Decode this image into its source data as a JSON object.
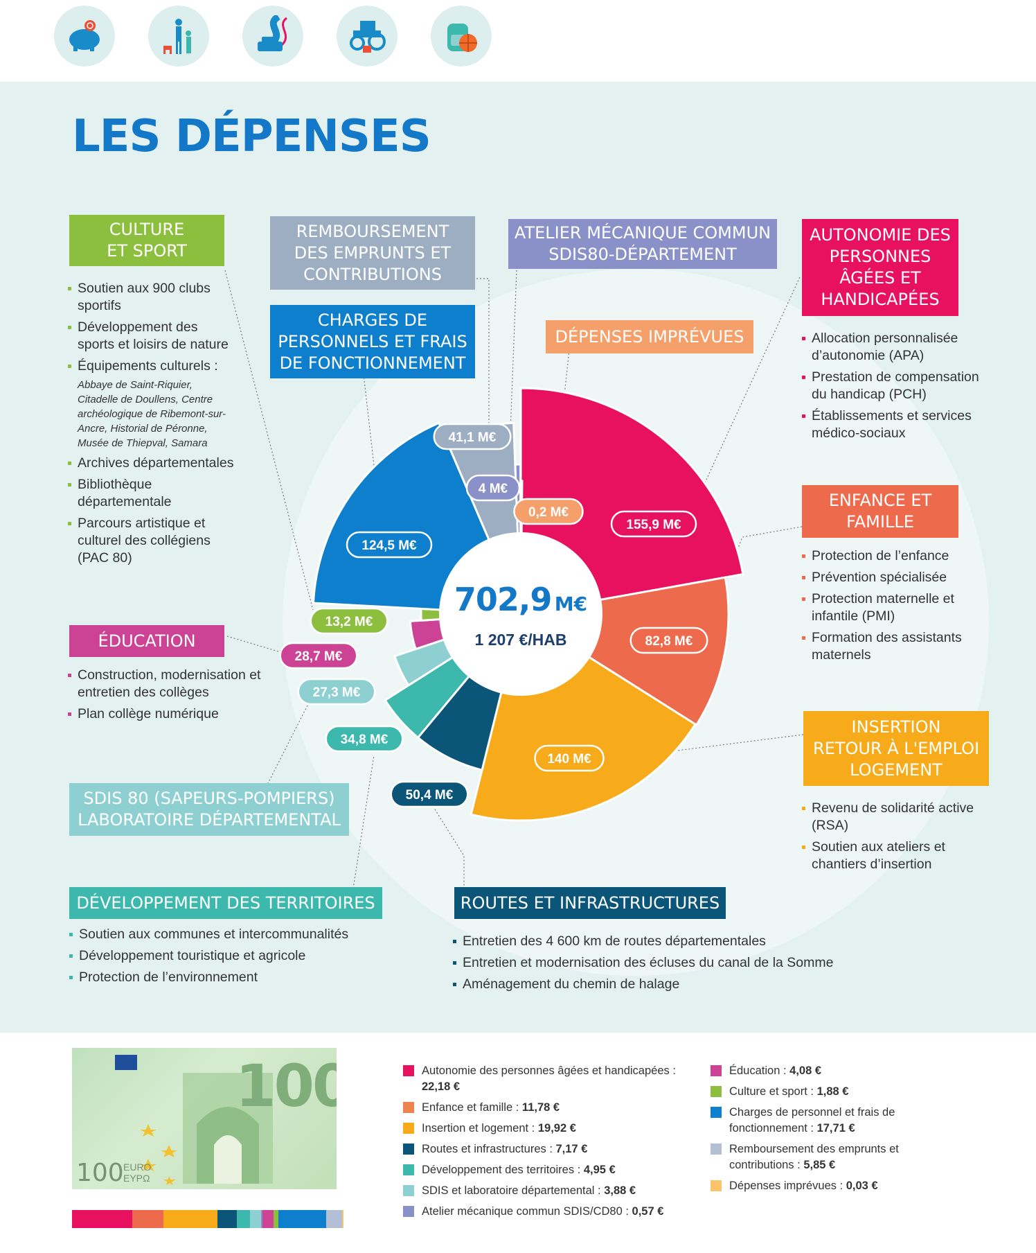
{
  "top_icons": [
    "piggy-bank-icon",
    "family-icon",
    "road-car-icon",
    "tractor-icon",
    "backpack-ball-icon"
  ],
  "title": "LES DÉPENSES",
  "center": {
    "total": "702,9",
    "unit": "M€",
    "per_hab": "1 207 €/HAB"
  },
  "categories": {
    "culture": {
      "title": [
        "CULTURE",
        "ET SPORT"
      ],
      "color": "#8dbf3e",
      "items": [
        "Soutien aux 900 clubs sportifs",
        "Développement des sports et loisirs de nature",
        "Équipements culturels :"
      ],
      "sub": "Abbaye de Saint-Riquier, Citadelle de Doullens, Centre archéologique de Ribemont-sur-Ancre, Historial de Péronne, Musée de Thiepval, Samara",
      "items2": [
        "Archives départementales",
        "Bibliothèque départementale",
        "Parcours artistique et culturel des collégiens (PAC 80)"
      ]
    },
    "remboursement": {
      "title": [
        "REMBOURSEMENT",
        "DES EMPRUNTS ET",
        "CONTRIBUTIONS"
      ],
      "color": "#9eaec2"
    },
    "atelier": {
      "title": [
        "ATELIER MÉCANIQUE COMMUN",
        "SDIS80-DÉPARTEMENT"
      ],
      "color": "#8a90c8"
    },
    "autonomie": {
      "title": [
        "AUTONOMIE DES",
        "PERSONNES",
        "ÂGÉES ET",
        "HANDICAPÉES"
      ],
      "color": "#e8115f",
      "items": [
        "Allocation personnalisée d’autonomie (APA)",
        "Prestation de compensation du handicap (PCH)",
        "Établissements et services médico-sociaux"
      ]
    },
    "charges": {
      "title": [
        "CHARGES DE",
        "PERSONNELS ET FRAIS",
        "DE FONCTIONNEMENT"
      ],
      "color": "#0e7fcc"
    },
    "imprevues": {
      "title": [
        "DÉPENSES IMPRÉVUES"
      ],
      "color": "#f5a06a"
    },
    "enfance": {
      "title": [
        "ENFANCE ET",
        "FAMILLE"
      ],
      "color": "#ee6a4c",
      "items": [
        "Protection de l’enfance",
        "Prévention spécialisée",
        "Protection maternelle et infantile (PMI)",
        "Formation des assistants maternels"
      ]
    },
    "education": {
      "title": [
        "ÉDUCATION"
      ],
      "color": "#cc4295",
      "items": [
        "Construction, modernisation et entretien des collèges",
        "Plan collège numérique"
      ]
    },
    "insertion": {
      "title": [
        "INSERTION",
        "RETOUR À L'EMPLOI",
        "LOGEMENT"
      ],
      "color": "#f7ab1b",
      "items": [
        "Revenu de solidarité active (RSA)",
        "Soutien aux ateliers et chantiers d’insertion"
      ]
    },
    "sdis": {
      "title": [
        "SDIS 80 (SAPEURS-POMPIERS)",
        "LABORATOIRE DÉPARTEMENTAL"
      ],
      "color": "#8ed0d2"
    },
    "territoires": {
      "title": [
        "DÉVELOPPEMENT DES TERRITOIRES"
      ],
      "color": "#3cb8ad",
      "items": [
        "Soutien aux communes et intercommunalités",
        "Développement touristique et agricole",
        "Protection de l’environnement"
      ]
    },
    "routes": {
      "title": [
        "ROUTES ET INFRASTRUCTURES"
      ],
      "color": "#0b5578",
      "items": [
        "Entretien des 4 600 km de routes départementales",
        "Entretien et modernisation des écluses du canal de la Somme",
        "Aménagement du chemin de halage"
      ]
    }
  },
  "chart_data": {
    "type": "pie",
    "total": 702.9,
    "slices": [
      {
        "key": "autonomie",
        "label": "155,9 M€",
        "value": 155.9,
        "color": "#e8115f"
      },
      {
        "key": "enfance",
        "label": "82,8 M€",
        "value": 82.8,
        "color": "#ee6a4c"
      },
      {
        "key": "insertion",
        "label": "140 M€",
        "value": 140,
        "color": "#f7ab1b"
      },
      {
        "key": "routes",
        "label": "50,4 M€",
        "value": 50.4,
        "color": "#0b5578"
      },
      {
        "key": "territoires",
        "label": "34,8 M€",
        "value": 34.8,
        "color": "#3cb8ad"
      },
      {
        "key": "sdis",
        "label": "27,3 M€",
        "value": 27.3,
        "color": "#8ed0d2"
      },
      {
        "key": "education",
        "label": "28,7 M€",
        "value": 28.7,
        "color": "#cc4295"
      },
      {
        "key": "culture",
        "label": "13,2 M€",
        "value": 13.2,
        "color": "#8dbf3e"
      },
      {
        "key": "charges",
        "label": "124,5 M€",
        "value": 124.5,
        "color": "#0e7fcc"
      },
      {
        "key": "remboursement",
        "label": "41,1 M€",
        "value": 41.1,
        "color": "#9eaec2"
      },
      {
        "key": "atelier",
        "label": "4 M€",
        "value": 4,
        "color": "#8a90c8"
      },
      {
        "key": "imprevues",
        "label": "0,2 M€",
        "value": 0.2,
        "color": "#f5a06a"
      }
    ]
  },
  "legend": {
    "col1": [
      {
        "text": "Autonomie des personnes âgées et handicapées : ",
        "value": "22,18 €",
        "color": "#e8115f"
      },
      {
        "text": "Enfance et famille : ",
        "value": "11,78 €",
        "color": "#ee8250"
      },
      {
        "text": "Insertion et logement : ",
        "value": "19,92 €",
        "color": "#f7ab1b"
      },
      {
        "text": "Routes et infrastructures : ",
        "value": "7,17 €",
        "color": "#0b5578"
      },
      {
        "text": "Développement des territoires : ",
        "value": "4,95 €",
        "color": "#3cb8ad"
      },
      {
        "text": "SDIS et laboratoire départemental : ",
        "value": "3,88 €",
        "color": "#8ed0d2"
      },
      {
        "text": "Atelier mécanique commun SDIS/CD80 : ",
        "value": "0,57 €",
        "color": "#8a90c8"
      }
    ],
    "col2": [
      {
        "text": "Éducation : ",
        "value": "4,08 €",
        "color": "#cc4295"
      },
      {
        "text": "Culture et sport : ",
        "value": "1,88 €",
        "color": "#8dbf3e"
      },
      {
        "text": "Charges de personnel et frais de fonctionnement : ",
        "value": "17,71 €",
        "color": "#0e7fcc"
      },
      {
        "text": "Remboursement des emprunts et contributions : ",
        "value": "5,85 €",
        "color": "#b2bfd4"
      },
      {
        "text": "Dépenses imprévues : ",
        "value": "0,03 €",
        "color": "#fcc36a"
      }
    ]
  },
  "bill": {
    "number": "100",
    "currency": "EURO",
    "currency_greek": "EYPΩ"
  },
  "bill_strip": [
    {
      "share": 22.18,
      "color": "#e8115f"
    },
    {
      "share": 11.78,
      "color": "#ee6a4c"
    },
    {
      "share": 19.92,
      "color": "#f7ab1b"
    },
    {
      "share": 7.17,
      "color": "#0b5578"
    },
    {
      "share": 4.95,
      "color": "#3cb8ad"
    },
    {
      "share": 3.88,
      "color": "#8ed0d2"
    },
    {
      "share": 0.57,
      "color": "#8a90c8"
    },
    {
      "share": 4.08,
      "color": "#cc4295"
    },
    {
      "share": 1.88,
      "color": "#8dbf3e"
    },
    {
      "share": 17.71,
      "color": "#0e7fcc"
    },
    {
      "share": 5.85,
      "color": "#b2bfd4"
    },
    {
      "share": 0.03,
      "color": "#fcc36a"
    }
  ]
}
